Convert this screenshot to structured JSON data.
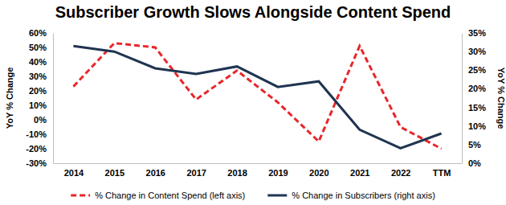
{
  "chart_data": {
    "type": "line",
    "title": "Subscriber Growth Slows Alongside Content Spend",
    "y_label": "YoY % Change",
    "y2_label": "YoY % Change",
    "categories": [
      "2014",
      "2015",
      "2016",
      "2017",
      "2018",
      "2019",
      "2020",
      "2021",
      "2022",
      "TTM"
    ],
    "series": [
      {
        "name": "% Change in Content Spend (left axis)",
        "color": "#e8262a",
        "line_style": "dashed",
        "axis": "y",
        "values": [
          23,
          53,
          50,
          14,
          34,
          12,
          -15,
          51,
          -5,
          -20
        ]
      },
      {
        "name": "% Change in Subscribers (right axis)",
        "color": "#1f3451",
        "line_style": "solid",
        "axis": "y2",
        "values": [
          31.5,
          30,
          25.5,
          24,
          26,
          20.5,
          22,
          9,
          4,
          8
        ]
      }
    ],
    "ylim": [
      -30,
      60
    ],
    "yticks": [
      {
        "value": -30,
        "label": "-30%"
      },
      {
        "value": -20,
        "label": "-20%"
      },
      {
        "value": -10,
        "label": "-10%"
      },
      {
        "value": 0,
        "label": "0%"
      },
      {
        "value": 10,
        "label": "10%"
      },
      {
        "value": 20,
        "label": "20%"
      },
      {
        "value": 30,
        "label": "30%"
      },
      {
        "value": 40,
        "label": "40%"
      },
      {
        "value": 50,
        "label": "50%"
      },
      {
        "value": 60,
        "label": "60%"
      }
    ],
    "y2lim": [
      0,
      35
    ],
    "y2ticks": [
      {
        "value": 0,
        "label": "0%"
      },
      {
        "value": 5,
        "label": "5%"
      },
      {
        "value": 10,
        "label": "10%"
      },
      {
        "value": 15,
        "label": "15%"
      },
      {
        "value": 20,
        "label": "20%"
      },
      {
        "value": 25,
        "label": "25%"
      },
      {
        "value": 30,
        "label": "30%"
      },
      {
        "value": 35,
        "label": "35%"
      }
    ],
    "grid": false,
    "legend": "bottom"
  }
}
